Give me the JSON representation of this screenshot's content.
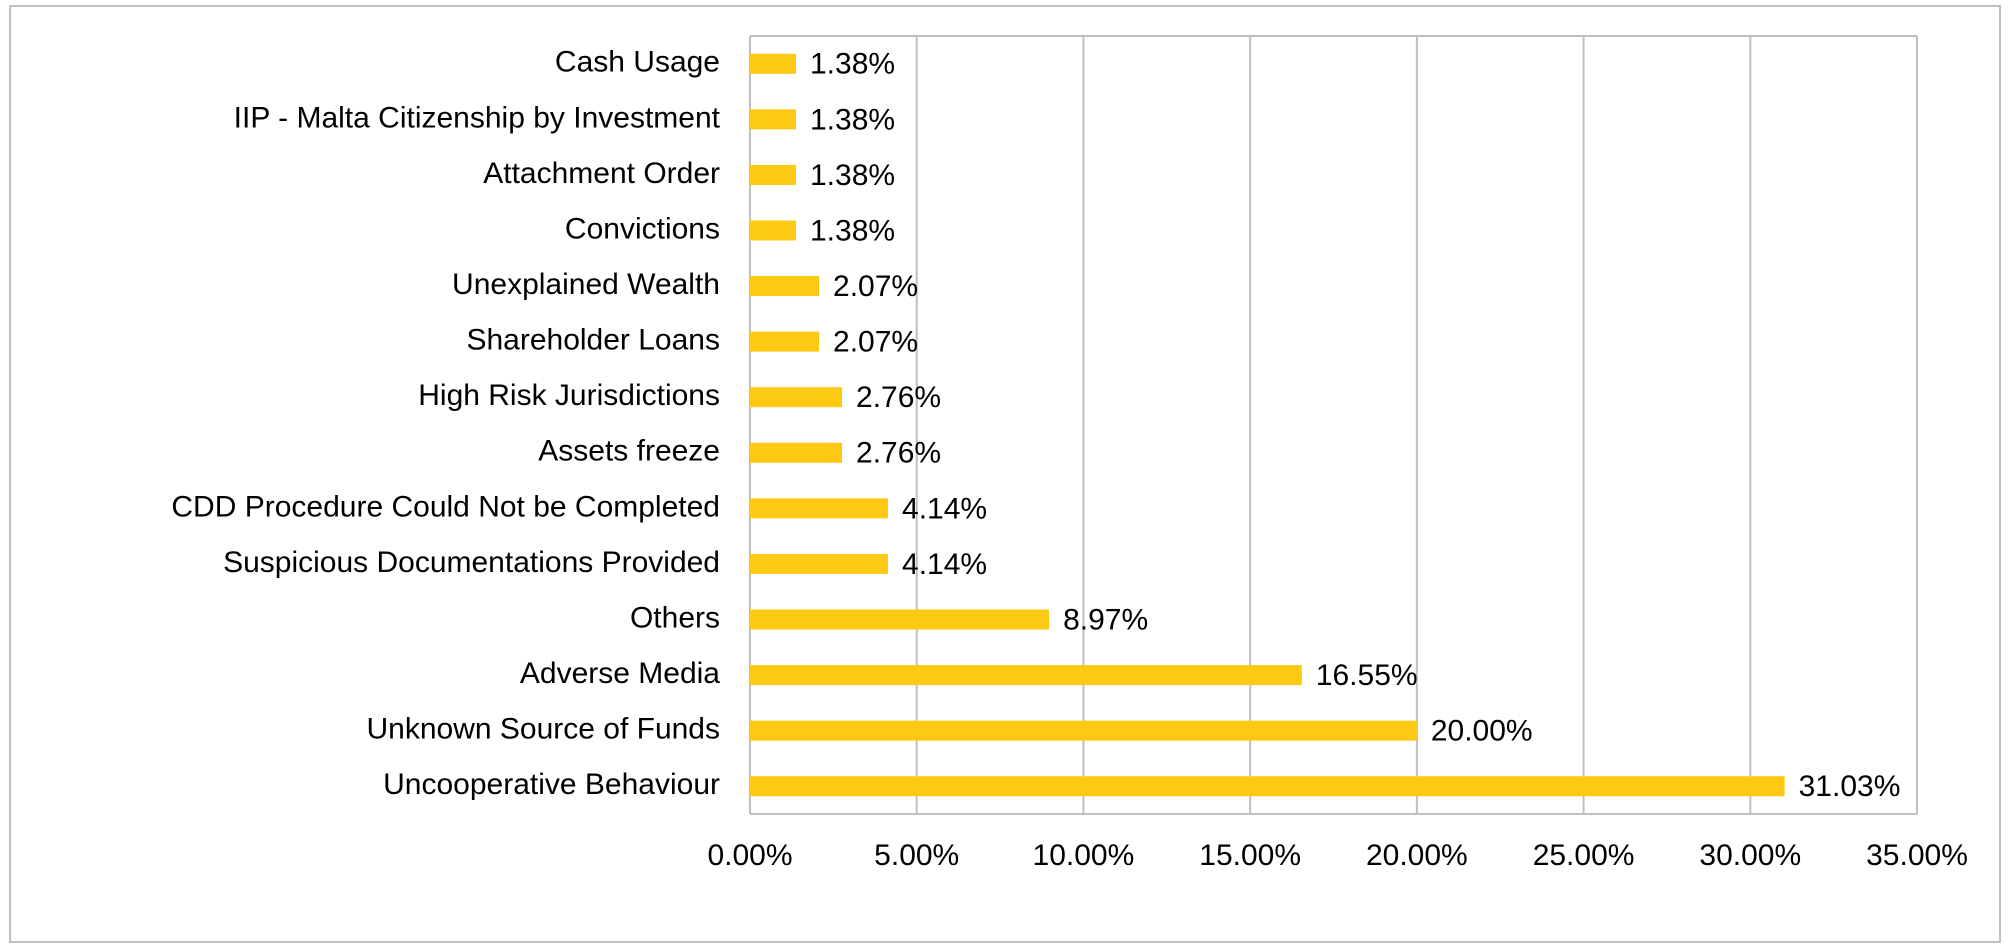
{
  "chart_data": {
    "type": "barh",
    "categories": [
      "Cash Usage",
      "IIP - Malta Citizenship by Investment",
      "Attachment Order",
      "Convictions",
      "Unexplained Wealth",
      "Shareholder Loans",
      "High Risk Jurisdictions",
      "Assets freeze",
      "CDD Procedure Could Not be Completed",
      "Suspicious Documentations Provided",
      "Others",
      "Adverse Media",
      "Unknown Source of Funds",
      "Uncooperative Behaviour"
    ],
    "values": [
      1.38,
      1.38,
      1.38,
      1.38,
      2.07,
      2.07,
      2.76,
      2.76,
      4.14,
      4.14,
      8.97,
      16.55,
      20.0,
      31.03
    ],
    "value_labels": [
      "1.38%",
      "1.38%",
      "1.38%",
      "1.38%",
      "2.07%",
      "2.07%",
      "2.76%",
      "2.76%",
      "4.14%",
      "4.14%",
      "8.97%",
      "16.55%",
      "20.00%",
      "31.03%"
    ],
    "color": "#fdc913",
    "xlim": [
      0,
      35
    ],
    "xticks": [
      {
        "value": 0,
        "label": "0.00%"
      },
      {
        "value": 5,
        "label": "5.00%"
      },
      {
        "value": 10,
        "label": "10.00%"
      },
      {
        "value": 15,
        "label": "15.00%"
      },
      {
        "value": 20,
        "label": "20.00%"
      },
      {
        "value": 25,
        "label": "25.00%"
      },
      {
        "value": 30,
        "label": "30.00%"
      },
      {
        "value": 35,
        "label": "35.00%"
      }
    ],
    "grid": true
  }
}
